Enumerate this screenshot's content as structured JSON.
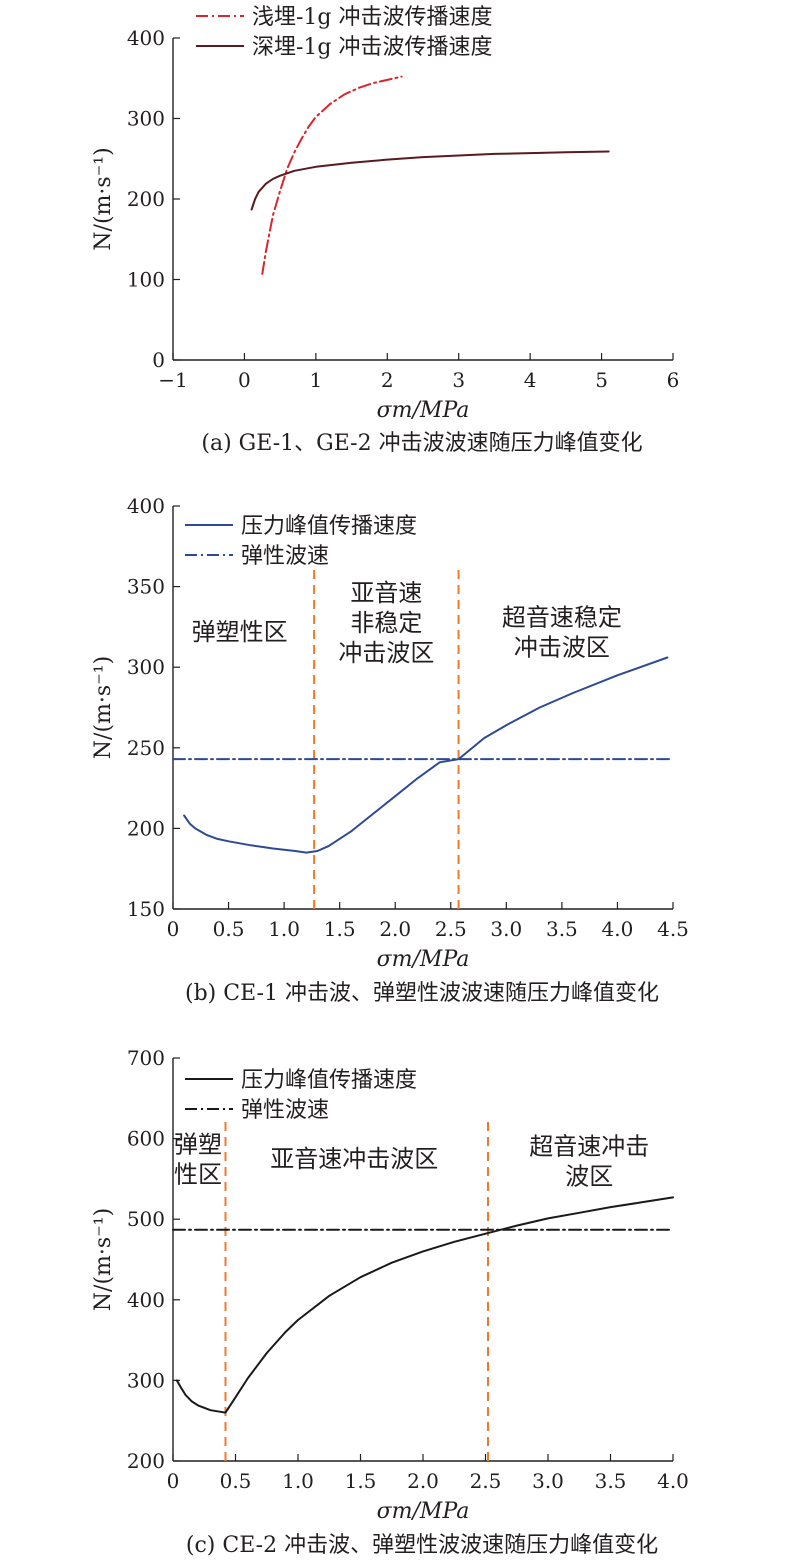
{
  "chart_data": [
    {
      "id": "a",
      "type": "line",
      "caption": "(a) GE-1、GE-2 冲击波波速随压力峰值变化",
      "xlabel": "σm/MPa",
      "ylabel": "N/(m·s⁻¹)",
      "xlim": [
        -1,
        6
      ],
      "ylim": [
        0,
        400
      ],
      "xticks": [
        -1,
        0,
        1,
        2,
        3,
        4,
        5,
        6
      ],
      "yticks": [
        0,
        100,
        200,
        300,
        400
      ],
      "xtick_labels": [
        "−1",
        "0",
        "1",
        "2",
        "3",
        "4",
        "5",
        "6"
      ],
      "ytick_labels": [
        "0",
        "100",
        "200",
        "300",
        "400"
      ],
      "legend_position": "top",
      "series": [
        {
          "name": "浅埋-1g 冲击波传播速度",
          "style": "dashdot",
          "color": "#d9262c",
          "x": [
            0.25,
            0.3,
            0.4,
            0.5,
            0.6,
            0.7,
            0.8,
            0.9,
            1.0,
            1.2,
            1.4,
            1.6,
            1.8,
            2.0,
            2.2
          ],
          "y": [
            107,
            135,
            180,
            210,
            238,
            258,
            275,
            290,
            302,
            318,
            330,
            338,
            344,
            348,
            352
          ]
        },
        {
          "name": "深埋-1g 冲击波传播速度",
          "style": "solid",
          "color": "#5a1a1e",
          "x": [
            0.1,
            0.15,
            0.2,
            0.3,
            0.4,
            0.5,
            0.7,
            1.0,
            1.5,
            2.0,
            2.5,
            3.0,
            3.5,
            4.0,
            4.5,
            5.1
          ],
          "y": [
            187,
            200,
            209,
            219,
            225,
            229,
            235,
            240,
            245,
            249,
            252,
            254,
            256,
            257,
            258,
            259
          ]
        }
      ]
    },
    {
      "id": "b",
      "type": "line",
      "caption": "(b) CE-1 冲击波、弹塑性波波速随压力峰值变化",
      "xlabel": "σm/MPa",
      "ylabel": "N/(m·s⁻¹)",
      "xlim": [
        0,
        4.5
      ],
      "ylim": [
        150,
        400
      ],
      "xticks": [
        0,
        0.5,
        1.0,
        1.5,
        2.0,
        2.5,
        3.0,
        3.5,
        4.0,
        4.5
      ],
      "yticks": [
        150,
        200,
        250,
        300,
        350,
        400
      ],
      "xtick_labels": [
        "0",
        "0.5",
        "1.0",
        "1.5",
        "2.0",
        "2.5",
        "3.0",
        "3.5",
        "4.0",
        "4.5"
      ],
      "ytick_labels": [
        "150",
        "200",
        "250",
        "300",
        "350",
        "400"
      ],
      "legend_position": "top-left",
      "series": [
        {
          "name": "压力峰值传播速度",
          "style": "solid",
          "color": "#2e4a96",
          "x": [
            0.1,
            0.15,
            0.2,
            0.3,
            0.4,
            0.5,
            0.7,
            0.9,
            1.1,
            1.2,
            1.3,
            1.4,
            1.6,
            1.8,
            2.0,
            2.2,
            2.4,
            2.57,
            2.8,
            3.0,
            3.3,
            3.6,
            4.0,
            4.45
          ],
          "y": [
            208,
            203,
            200,
            196,
            193.5,
            192,
            189.5,
            187.5,
            186,
            185,
            186,
            189,
            198,
            209,
            220,
            231,
            241,
            243,
            256,
            264,
            275,
            284,
            295,
            306
          ]
        },
        {
          "name": "弹性波速",
          "style": "dashdot",
          "color": "#2e4a96",
          "x": [
            0,
            4.5
          ],
          "y": [
            243,
            243
          ]
        }
      ],
      "vlines": [
        1.27,
        2.57
      ],
      "vline_color": "#f07a2a",
      "zones": [
        {
          "lines": [
            "弹塑性区"
          ],
          "x": 0.6,
          "y": 317
        },
        {
          "lines": [
            "亚音速",
            "非稳定",
            "冲击波区"
          ],
          "x": 1.92,
          "y": 341
        },
        {
          "lines": [
            "超音速稳定",
            "冲击波区"
          ],
          "x": 3.5,
          "y": 326
        }
      ]
    },
    {
      "id": "c",
      "type": "line",
      "caption": "(c) CE-2 冲击波、弹塑性波波速随压力峰值变化",
      "xlabel": "σm/MPa",
      "ylabel": "N/(m·s⁻¹)",
      "xlim": [
        0,
        4.0
      ],
      "ylim": [
        200,
        700
      ],
      "xticks": [
        0,
        0.5,
        1.0,
        1.5,
        2.0,
        2.5,
        3.0,
        3.5,
        4.0
      ],
      "yticks": [
        200,
        300,
        400,
        500,
        600,
        700
      ],
      "xtick_labels": [
        "0",
        "0.5",
        "1.0",
        "1.5",
        "2.0",
        "2.5",
        "3.0",
        "3.5",
        "4.0"
      ],
      "ytick_labels": [
        "200",
        "300",
        "400",
        "500",
        "600",
        "700"
      ],
      "legend_position": "top-left",
      "series": [
        {
          "name": "压力峰值传播速度",
          "style": "solid",
          "color": "#1a1a1a",
          "x": [
            0.03,
            0.06,
            0.1,
            0.15,
            0.2,
            0.3,
            0.38,
            0.42,
            0.5,
            0.6,
            0.75,
            0.9,
            1.0,
            1.25,
            1.5,
            1.75,
            2.0,
            2.25,
            2.5,
            2.75,
            3.0,
            3.25,
            3.5,
            3.75,
            4.0
          ],
          "y": [
            300,
            292,
            282,
            274,
            269,
            263,
            261,
            260,
            279,
            303,
            334,
            360,
            375,
            405,
            428,
            446,
            460,
            472,
            482,
            492,
            501,
            508,
            515,
            521,
            527
          ]
        },
        {
          "name": "弹性波速",
          "style": "dashdot",
          "color": "#1a1a1a",
          "x": [
            0,
            4.0
          ],
          "y": [
            487,
            487
          ]
        }
      ],
      "vlines": [
        0.42,
        2.52
      ],
      "vline_color": "#f07a2a",
      "zones": [
        {
          "lines": [
            "弹塑",
            "性区"
          ],
          "x": 0.2,
          "y": 583
        },
        {
          "lines": [
            "亚音速冲击波区"
          ],
          "x": 1.45,
          "y": 565
        },
        {
          "lines": [
            "超音速冲击",
            "波区"
          ],
          "x": 3.33,
          "y": 580
        }
      ]
    }
  ]
}
